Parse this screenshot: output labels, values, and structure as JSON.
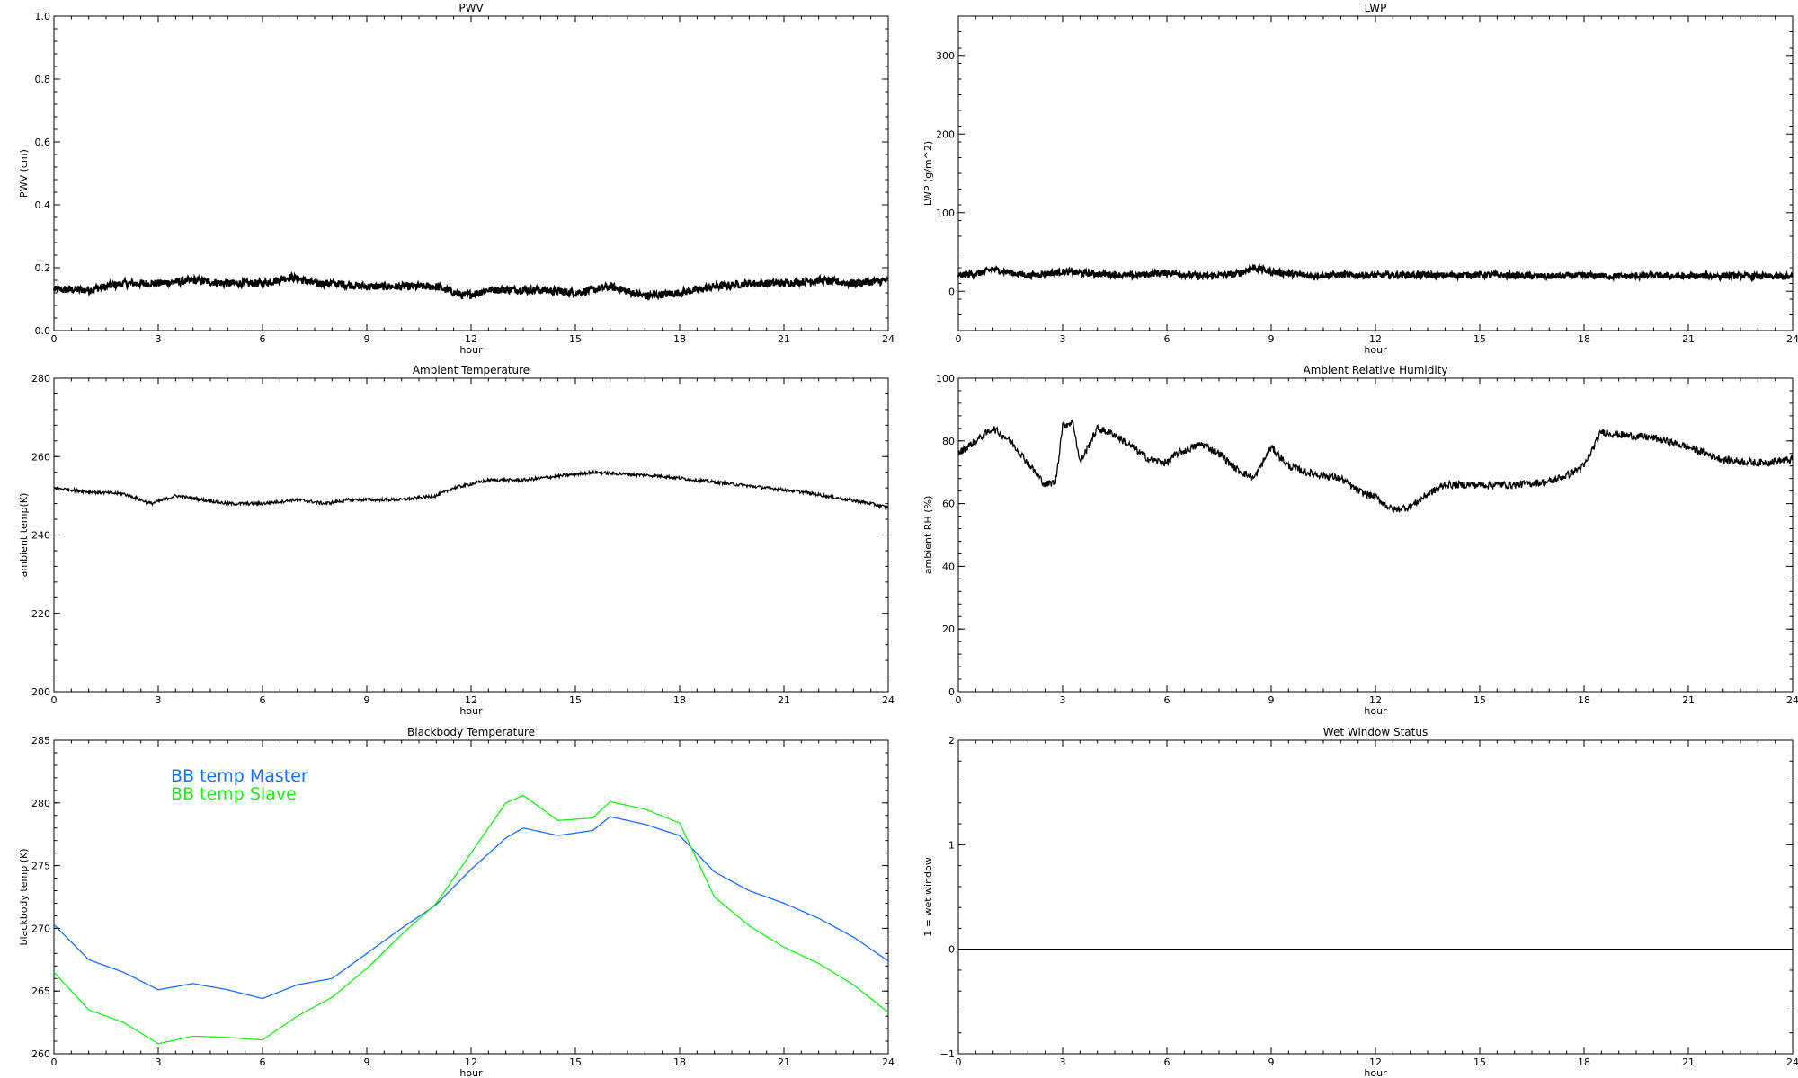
{
  "chart_data": [
    {
      "type": "line",
      "title": "PWV",
      "xlabel": "hour",
      "ylabel": "PWV (cm)",
      "xlim": [
        0,
        24
      ],
      "ylim": [
        0.0,
        1.0
      ],
      "x_ticks": [
        0,
        3,
        6,
        9,
        12,
        15,
        18,
        21,
        24
      ],
      "y_ticks": [
        "0.0",
        "0.2",
        "0.4",
        "0.6",
        "0.8",
        "1.0"
      ],
      "line_color": "#000000",
      "series": [
        {
          "x": [
            0,
            1,
            2,
            3,
            4,
            5,
            6,
            6.8,
            7.5,
            8,
            9,
            10,
            11,
            11.8,
            12.5,
            13,
            14,
            15,
            16,
            17,
            18,
            19,
            20,
            21,
            22,
            23,
            24
          ],
          "values": [
            0.13,
            0.13,
            0.15,
            0.15,
            0.16,
            0.15,
            0.15,
            0.17,
            0.15,
            0.15,
            0.14,
            0.14,
            0.14,
            0.11,
            0.13,
            0.13,
            0.13,
            0.12,
            0.14,
            0.11,
            0.12,
            0.14,
            0.15,
            0.15,
            0.16,
            0.15,
            0.16
          ]
        }
      ]
    },
    {
      "type": "line",
      "title": "LWP",
      "xlabel": "hour",
      "ylabel": "LWP (g/m^2)",
      "xlim": [
        0,
        24
      ],
      "ylim": [
        -50,
        350
      ],
      "x_ticks": [
        0,
        3,
        6,
        9,
        12,
        15,
        18,
        21,
        24
      ],
      "y_ticks": [
        "0",
        "100",
        "200",
        "300"
      ],
      "y_tick_values": [
        0,
        100,
        200,
        300
      ],
      "line_color": "#000000",
      "series": [
        {
          "x": [
            0,
            0.5,
            1,
            2,
            3,
            4,
            5,
            6,
            7,
            8,
            8.5,
            9,
            10,
            11,
            12,
            13,
            14,
            15,
            16,
            17,
            18,
            19,
            20,
            21,
            22,
            23,
            24
          ],
          "values": [
            20,
            22,
            28,
            20,
            25,
            22,
            20,
            24,
            19,
            22,
            30,
            25,
            20,
            21,
            20,
            21,
            20,
            21,
            20,
            19,
            20,
            19,
            20,
            19,
            20,
            19,
            18
          ]
        }
      ]
    },
    {
      "type": "line",
      "title": "Ambient Temperature",
      "xlabel": "hour",
      "ylabel": "ambient temp(K)",
      "xlim": [
        0,
        24
      ],
      "ylim": [
        200,
        280
      ],
      "x_ticks": [
        0,
        3,
        6,
        9,
        12,
        15,
        18,
        21,
        24
      ],
      "y_ticks": [
        "200",
        "220",
        "240",
        "260",
        "280"
      ],
      "y_tick_values": [
        200,
        220,
        240,
        260,
        280
      ],
      "line_color": "#000000",
      "series": [
        {
          "x": [
            0,
            1,
            2,
            2.8,
            3.5,
            5,
            6,
            7,
            7.8,
            8.5,
            10,
            11,
            11.5,
            12.5,
            13.5,
            14.5,
            15.5,
            16.5,
            17.5,
            18.5,
            19.5,
            20.5,
            21.5,
            22.5,
            23.5,
            24
          ],
          "values": [
            252,
            251,
            250.5,
            248,
            250,
            248,
            248,
            249,
            248,
            249,
            249,
            250,
            252,
            254,
            254,
            255,
            256,
            255.5,
            255,
            254,
            253,
            252,
            251,
            249.5,
            248,
            247
          ]
        }
      ]
    },
    {
      "type": "line",
      "title": "Ambient Relative Humidity",
      "xlabel": "hour",
      "ylabel": "ambient RH (%)",
      "xlim": [
        0,
        24
      ],
      "ylim": [
        0,
        100
      ],
      "x_ticks": [
        0,
        3,
        6,
        9,
        12,
        15,
        18,
        21,
        24
      ],
      "y_ticks": [
        "0",
        "20",
        "40",
        "60",
        "80",
        "100"
      ],
      "y_tick_values": [
        0,
        20,
        40,
        60,
        80,
        100
      ],
      "line_color": "#000000",
      "series": [
        {
          "x": [
            0,
            0.5,
            1,
            1.5,
            2,
            2.5,
            2.8,
            3.0,
            3.3,
            3.5,
            4,
            4.5,
            5,
            5.5,
            6,
            6.3,
            7,
            7.5,
            8,
            8.5,
            9,
            9.5,
            10,
            11,
            11.5,
            12,
            12.5,
            13,
            13.5,
            14,
            15,
            16,
            17,
            17.5,
            18,
            18.5,
            19,
            20,
            21,
            22,
            23,
            24
          ],
          "values": [
            76,
            80,
            84,
            80,
            73,
            66,
            67,
            85,
            86,
            73,
            84,
            82,
            78,
            74,
            73,
            76,
            79,
            76,
            71,
            68,
            78,
            72,
            70,
            68,
            64,
            62,
            58,
            59,
            63,
            66,
            66,
            66,
            67,
            69,
            72,
            83,
            82,
            81,
            78,
            74,
            73,
            74
          ]
        }
      ]
    },
    {
      "type": "line",
      "title": "Blackbody Temperature",
      "xlabel": "hour",
      "ylabel": "blackbody temp (K)",
      "xlim": [
        0,
        24
      ],
      "ylim": [
        260,
        285
      ],
      "x_ticks": [
        0,
        3,
        6,
        9,
        12,
        15,
        18,
        21,
        24
      ],
      "y_ticks": [
        "260",
        "265",
        "270",
        "275",
        "280",
        "285"
      ],
      "y_tick_values": [
        260,
        265,
        270,
        275,
        280,
        285
      ],
      "legend": [
        {
          "label": "BB temp Master",
          "color": "#1a6cff"
        },
        {
          "label": "BB temp Slave",
          "color": "#22e822"
        }
      ],
      "series": [
        {
          "name": "BB temp Master",
          "color": "#1a6cff",
          "x": [
            0,
            1,
            2,
            3,
            4,
            5,
            6,
            7,
            8,
            9,
            10,
            11,
            12,
            13,
            13.5,
            14.5,
            15.5,
            16,
            17,
            18,
            19,
            20,
            21,
            22,
            23,
            24
          ],
          "values": [
            270.3,
            267.5,
            266.5,
            265.1,
            265.6,
            265.1,
            264.4,
            265.5,
            266,
            268,
            270,
            271.9,
            274.7,
            277.2,
            278,
            277.4,
            277.8,
            278.9,
            278.3,
            277.4,
            274.5,
            273,
            272,
            270.8,
            269.3,
            267.4
          ]
        },
        {
          "name": "BB temp Slave",
          "color": "#22e822",
          "x": [
            0,
            1,
            2,
            3,
            4,
            5,
            6,
            7,
            8,
            9,
            10,
            11,
            12,
            13,
            13.5,
            14.5,
            15.5,
            16,
            17,
            18,
            19,
            20,
            21,
            22,
            23,
            24
          ],
          "values": [
            266.5,
            263.5,
            262.5,
            260.8,
            261.4,
            261.3,
            261.1,
            263,
            264.5,
            266.8,
            269.5,
            272,
            276,
            280,
            280.6,
            278.6,
            278.8,
            280.1,
            279.5,
            278.4,
            272.5,
            270.2,
            268.5,
            267.2,
            265.5,
            263.3
          ]
        }
      ]
    },
    {
      "type": "line",
      "title": "Wet Window Status",
      "xlabel": "hour",
      "ylabel": "1 = wet window",
      "xlim": [
        0,
        24
      ],
      "ylim": [
        -1,
        2
      ],
      "x_ticks": [
        0,
        3,
        6,
        9,
        12,
        15,
        18,
        21,
        24
      ],
      "y_ticks": [
        "−1",
        "0",
        "1",
        "2"
      ],
      "y_tick_values": [
        -1,
        0,
        1,
        2
      ],
      "line_color": "#000000",
      "series": [
        {
          "x": [
            0,
            24
          ],
          "values": [
            0,
            0
          ]
        }
      ]
    }
  ]
}
